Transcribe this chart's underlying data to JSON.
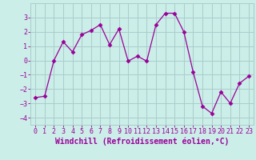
{
  "x": [
    0,
    1,
    2,
    3,
    4,
    5,
    6,
    7,
    8,
    9,
    10,
    11,
    12,
    13,
    14,
    15,
    16,
    17,
    18,
    19,
    20,
    21,
    22,
    23
  ],
  "y": [
    -2.6,
    -2.5,
    0.0,
    1.3,
    0.6,
    1.8,
    2.1,
    2.5,
    1.1,
    2.2,
    -0.05,
    0.3,
    -0.05,
    2.5,
    3.3,
    3.3,
    2.0,
    -0.8,
    -3.2,
    -3.7,
    -2.2,
    -3.0,
    -1.6,
    -1.1
  ],
  "line_color": "#990099",
  "marker": "D",
  "marker_size": 2.5,
  "bg_color": "#cceee8",
  "grid_color": "#aacccc",
  "xlabel": "Windchill (Refroidissement éolien,°C)",
  "xlabel_color": "#990099",
  "ylim": [
    -4.5,
    4.0
  ],
  "xlim": [
    -0.5,
    23.5
  ],
  "yticks": [
    -4,
    -3,
    -2,
    -1,
    0,
    1,
    2,
    3
  ],
  "xticks": [
    0,
    1,
    2,
    3,
    4,
    5,
    6,
    7,
    8,
    9,
    10,
    11,
    12,
    13,
    14,
    15,
    16,
    17,
    18,
    19,
    20,
    21,
    22,
    23
  ],
  "tick_color": "#990099",
  "tick_fontsize": 6,
  "xlabel_fontsize": 7
}
